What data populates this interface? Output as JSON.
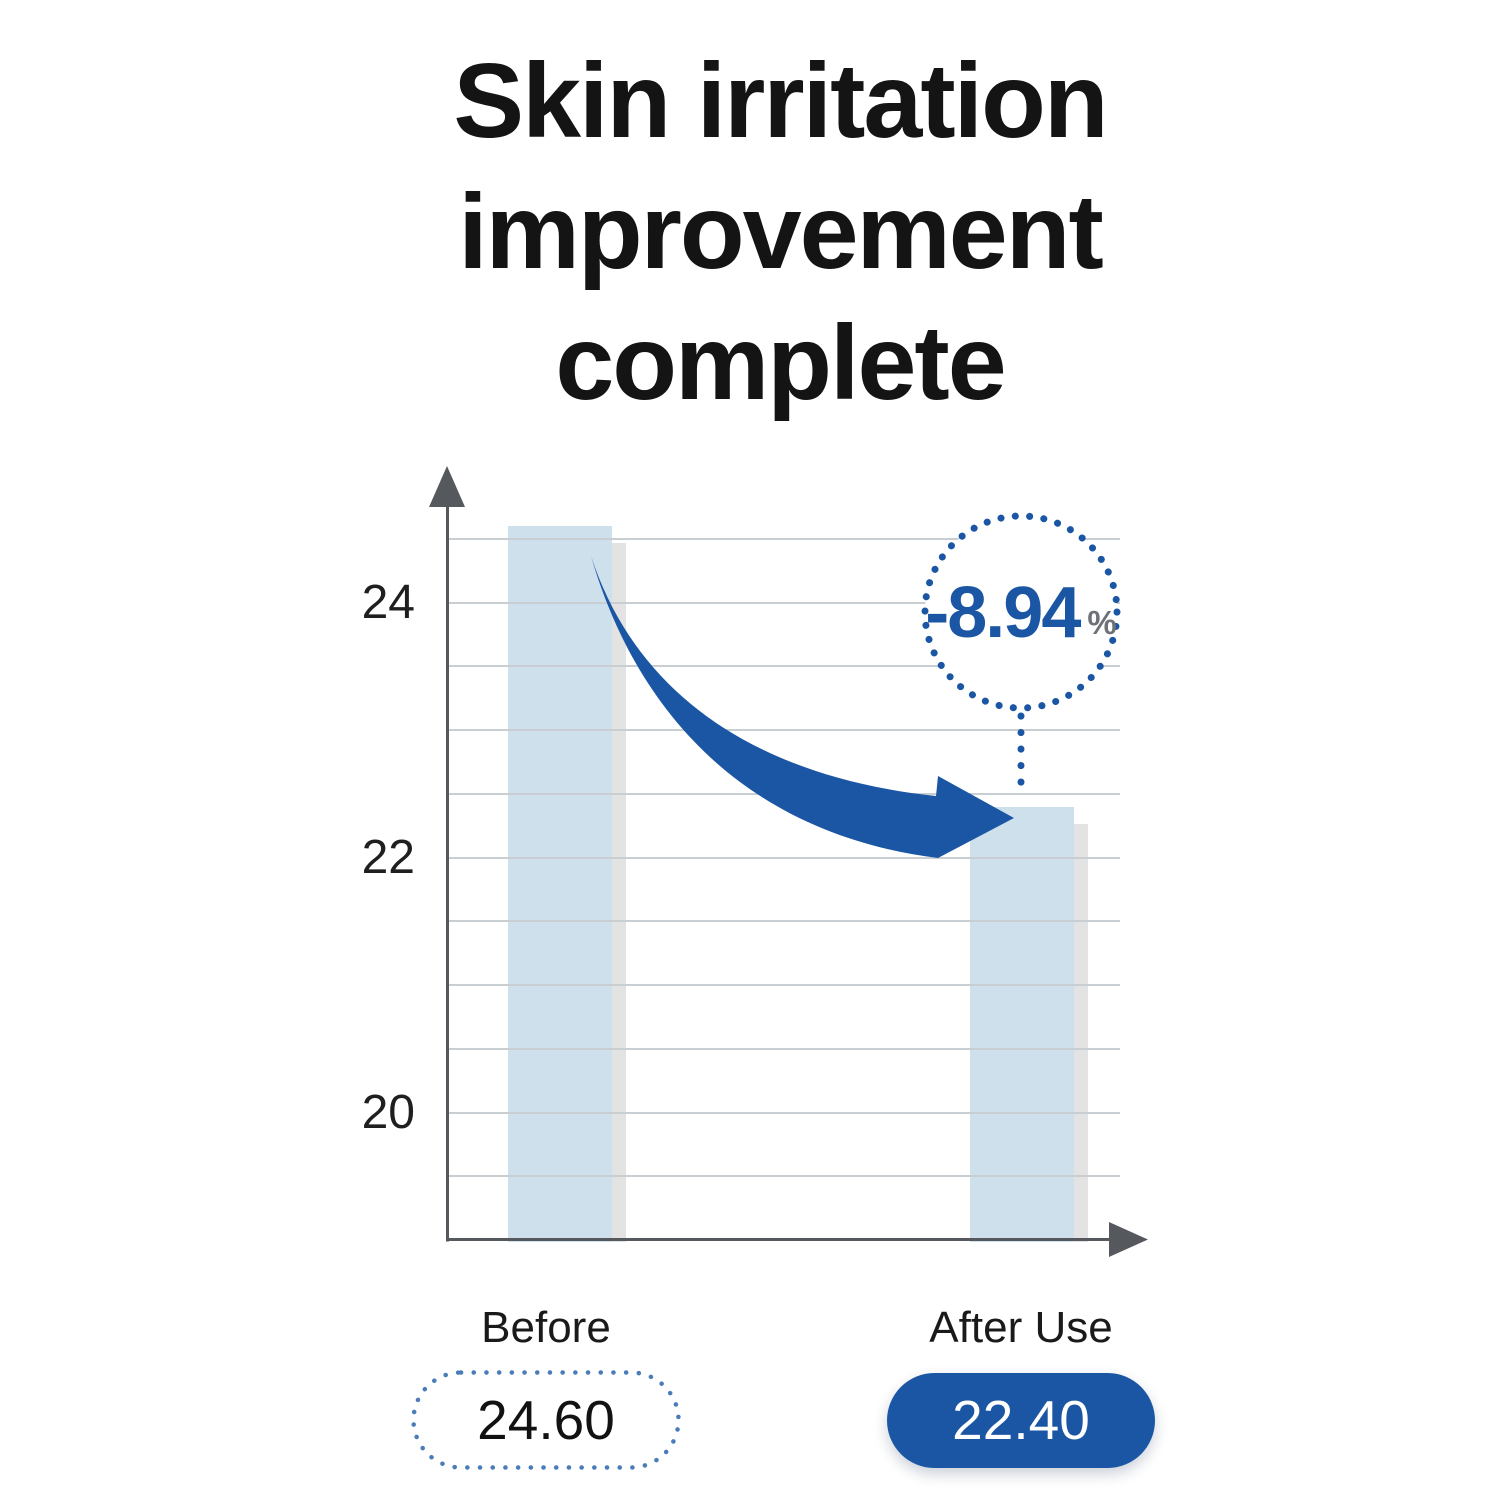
{
  "title": {
    "lines": [
      "Skin irritation",
      "improvement",
      "complete"
    ]
  },
  "chart_data": {
    "type": "bar",
    "title": "Skin irritation improvement complete",
    "categories": [
      "Before",
      "After Use"
    ],
    "values": [
      24.6,
      22.4
    ],
    "value_labels": [
      "24.60",
      "22.40"
    ],
    "change_label": "-8.94",
    "change_unit": "%",
    "y_ticks": [
      24,
      22,
      20
    ],
    "ylim": [
      19,
      25
    ],
    "gridline_step": 0.5,
    "grid": true,
    "legend": "none"
  },
  "colors": {
    "accent": "#1a56a3",
    "bar_fill": "#cfe0ed",
    "bar_shadow": "#e3e3e4",
    "gridline": "#c9ced3",
    "axis": "#55585c",
    "title_text": "#141414",
    "percent_sign": "#6e7276",
    "pill_dotted_border": "#4a7cb8",
    "pill_value_before": "#121212",
    "pill_value_after": "#ffffff"
  }
}
